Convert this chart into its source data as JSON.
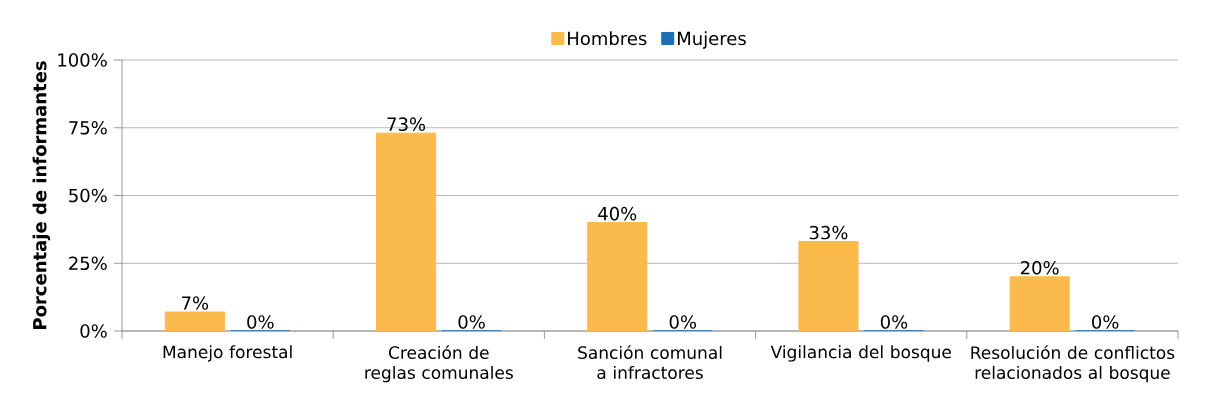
{
  "chart_data": {
    "type": "bar",
    "ylabel": "Porcentaje de informantes",
    "categories": [
      "Manejo forestal",
      "Creación de reglas comunales",
      "Sanción comunal a infractores",
      "Vigilancia del bosque",
      "Resolución de conflictos relacionados al bosque"
    ],
    "series": [
      {
        "name": "Hombres",
        "color": "#fbba4c",
        "values": [
          7,
          73,
          40,
          33,
          20
        ],
        "value_labels": [
          "7%",
          "73%",
          "40%",
          "33%",
          "20%"
        ]
      },
      {
        "name": "Mujeres",
        "color": "#1f6db5",
        "values": [
          0,
          0,
          0,
          0,
          0
        ],
        "value_labels": [
          "0%",
          "0%",
          "0%",
          "0%",
          "0%"
        ]
      }
    ],
    "ylim": [
      0,
      100
    ],
    "yticks": [
      {
        "value": 0,
        "label": "0%"
      },
      {
        "value": 25,
        "label": "25%"
      },
      {
        "value": 50,
        "label": "50%"
      },
      {
        "value": 75,
        "label": "75%"
      },
      {
        "value": 100,
        "label": "100%"
      }
    ],
    "grid": "y",
    "legend": "top"
  }
}
